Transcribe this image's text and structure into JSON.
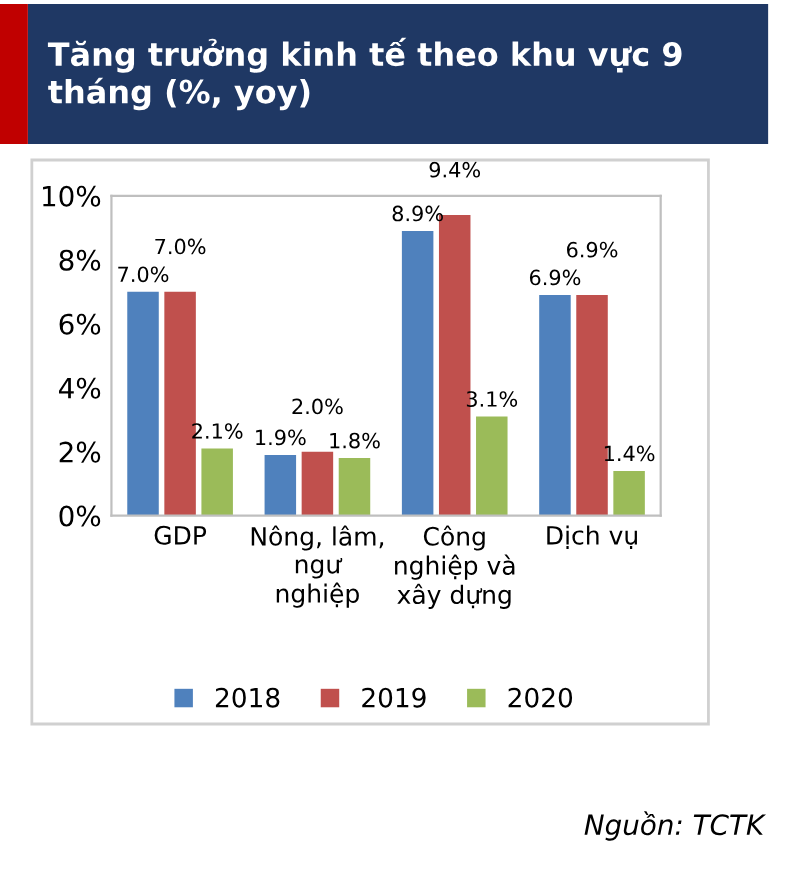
{
  "chart_data": {
    "type": "bar",
    "title": "Tăng trưởng kinh tế theo khu vực 9\ntháng (%, yoy)",
    "categories": [
      "GDP",
      "Nông, lâm,\nngư\nnghiệp",
      "Công\nnghiệp và\nxây dựng",
      "Dịch vụ"
    ],
    "series": [
      {
        "name": "2018",
        "color": "#4f81bd",
        "values": [
          7.0,
          1.9,
          8.9,
          6.9
        ],
        "value_labels": [
          "7.0%",
          "1.9%",
          "8.9%",
          "6.9%"
        ]
      },
      {
        "name": "2019",
        "color": "#c0504d",
        "values": [
          7.0,
          2.0,
          9.4,
          6.9
        ],
        "value_labels": [
          "7.0%",
          "2.0%",
          "9.4%",
          "6.9%"
        ]
      },
      {
        "name": "2020",
        "color": "#9bbb59",
        "values": [
          2.1,
          1.8,
          3.1,
          1.4
        ],
        "value_labels": [
          "2.1%",
          "1.8%",
          "3.1%",
          "1.4%"
        ]
      }
    ],
    "ylim": [
      0,
      10
    ],
    "yticks": [
      {
        "value": 0,
        "label": "0%"
      },
      {
        "value": 2,
        "label": "2%"
      },
      {
        "value": 4,
        "label": "4%"
      },
      {
        "value": 6,
        "label": "6%"
      },
      {
        "value": 8,
        "label": "8%"
      },
      {
        "value": 10,
        "label": "10%"
      }
    ],
    "grid": false,
    "legend": "bottom",
    "annotations": [
      "Nguồn: TCTK"
    ]
  }
}
